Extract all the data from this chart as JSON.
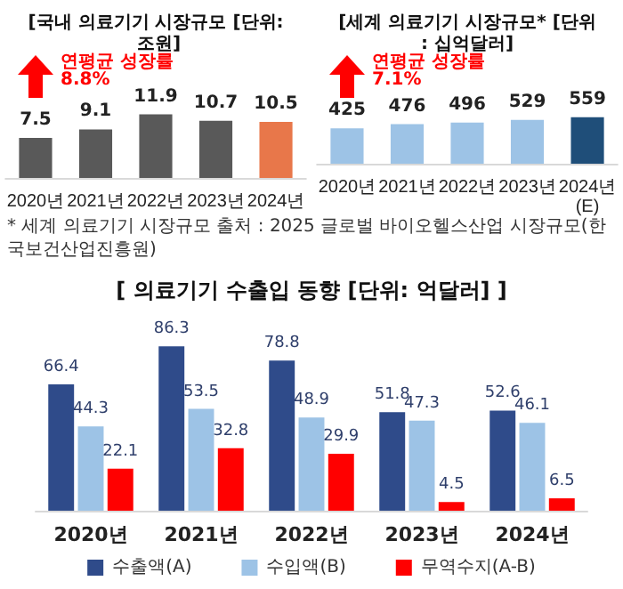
{
  "chart_data": [
    {
      "type": "bar",
      "title": "[국내 의료기기 시장규모 [단위: 조원]",
      "categories": [
        "2020년",
        "2021년",
        "2022년",
        "2023년",
        "2024년"
      ],
      "values": [
        7.5,
        9.1,
        11.9,
        10.7,
        10.5
      ],
      "colors": [
        "#595959",
        "#595959",
        "#595959",
        "#595959",
        "#e8774a"
      ],
      "data_labels": true,
      "annotations": [
        "연평균 성장률 8.8%"
      ]
    },
    {
      "type": "bar",
      "title": "[세계 의료기기 시장규모* [단위: 십억달러]",
      "categories": [
        "2020년",
        "2021년",
        "2022년",
        "2023년",
        "2024년(E)"
      ],
      "values": [
        425,
        476,
        496,
        529,
        559
      ],
      "colors": [
        "#9dc3e6",
        "#9dc3e6",
        "#9dc3e6",
        "#9dc3e6",
        "#1f4e79"
      ],
      "data_labels": true,
      "annotations": [
        "연평균 성장률 7.1%",
        "* 세계 의료기기 시장규모 출처 : 2025 글로벌 바이오헬스산업 시장규모(한국보건산업진흥원)"
      ]
    },
    {
      "type": "bar",
      "title": "[ 의료기기 수출입 동향 [단위: 억달러] ]",
      "categories": [
        "2020년",
        "2021년",
        "2022년",
        "2023년",
        "2024년"
      ],
      "series": [
        {
          "name": "수출액(A)",
          "color": "#2f4b8a",
          "values": [
            66.4,
            86.3,
            78.8,
            51.8,
            52.6
          ]
        },
        {
          "name": "수입액(B)",
          "color": "#9dc3e6",
          "values": [
            44.3,
            53.5,
            48.9,
            47.3,
            46.1
          ]
        },
        {
          "name": "무역수지(A-B)",
          "color": "#ff0000",
          "values": [
            22.1,
            32.8,
            29.9,
            4.5,
            6.5
          ]
        }
      ],
      "data_labels": true,
      "legend": "bottom"
    }
  ]
}
